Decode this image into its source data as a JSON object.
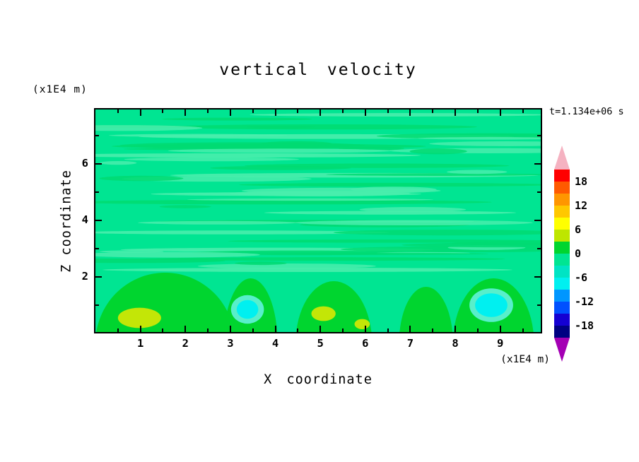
{
  "chart_data": {
    "type": "heatmap",
    "title": "vertical velocity",
    "annotation": "t=1.134e+06 s",
    "xlabel": "X coordinate",
    "ylabel": "Z coordinate",
    "x_unit_label": "(x1E4 m)",
    "y_unit_label": "(x1E4 m)",
    "x_ticks": [
      1,
      2,
      3,
      4,
      5,
      6,
      7,
      8,
      9
    ],
    "x_minor_ticks": [
      0.5,
      1.5,
      2.5,
      3.5,
      4.5,
      5.5,
      6.5,
      7.5,
      8.5,
      9.5
    ],
    "y_ticks": [
      2,
      4,
      6
    ],
    "y_minor_ticks": [
      1,
      3,
      5,
      7
    ],
    "xlim": [
      0,
      9.9
    ],
    "ylim": [
      0.05,
      7.925
    ],
    "grid": false,
    "colorbar": {
      "position": "right",
      "tick_labels": [
        "18",
        "12",
        "6",
        "0",
        "-6",
        "-12",
        "-18"
      ],
      "contour_levels": [
        -21,
        -18,
        -15,
        -12,
        -9,
        -6,
        -3,
        0,
        3,
        6,
        9,
        12,
        15,
        18,
        21
      ],
      "segment_colors_top_to_bottom": [
        "#FF0000",
        "#FF5A00",
        "#FF9600",
        "#FFC800",
        "#FFFF00",
        "#BEE600",
        "#00D52F",
        "#00E592",
        "#00E4C4",
        "#00F0F0",
        "#0096FF",
        "#0050FF",
        "#1400D2",
        "#000082"
      ],
      "over_arrow_color": "#F5B2C1",
      "under_arrow_color": "#A400B4"
    },
    "field": {
      "description": "Filled contour field of vertical velocity; mostly near-zero (medium spring green) with thin horizontal wave streaks above z=2 and convective mounds with updraft/downdraft cores below z=2.",
      "background_value_range": [
        -3,
        0
      ],
      "background_color": "#00E592",
      "streaks": {
        "z_range": [
          2.2,
          7.9
        ],
        "value_ranges": [
          [
            -6,
            -3
          ],
          [
            0,
            3
          ]
        ],
        "colors": [
          "#49EDAD",
          "#00DB72"
        ]
      },
      "mound_color": "#00D52F",
      "mounds": [
        {
          "x_center": 1.55,
          "half_width": 1.55,
          "top_z": 2.1,
          "value_range": [
            0,
            3
          ]
        },
        {
          "x_center": 3.45,
          "half_width": 0.6,
          "top_z": 1.9,
          "value_range": [
            0,
            3
          ]
        },
        {
          "x_center": 5.3,
          "half_width": 0.85,
          "top_z": 1.8,
          "value_range": [
            0,
            3
          ]
        },
        {
          "x_center": 7.35,
          "half_width": 0.6,
          "top_z": 1.6,
          "value_range": [
            0,
            3
          ]
        },
        {
          "x_center": 8.85,
          "half_width": 0.9,
          "top_z": 1.9,
          "value_range": [
            0,
            3
          ]
        }
      ],
      "updraft_cores": [
        {
          "x": 0.98,
          "z": 0.55,
          "rx": 0.48,
          "rz": 0.36,
          "value_range": [
            3,
            6
          ],
          "color": "#C3E607"
        },
        {
          "x": 5.07,
          "z": 0.7,
          "rx": 0.27,
          "rz": 0.26,
          "value_range": [
            3,
            6
          ],
          "color": "#C3E607"
        },
        {
          "x": 5.93,
          "z": 0.33,
          "rx": 0.17,
          "rz": 0.18,
          "value_range": [
            3,
            6
          ],
          "color": "#C3E607"
        }
      ],
      "downdraft_cores": [
        {
          "x": 3.38,
          "z": 0.85,
          "rx": 0.24,
          "rz": 0.33,
          "value_range": [
            -9,
            -3
          ],
          "halo_color": "#58EFCB",
          "core_color": "#00F0F0"
        },
        {
          "x": 8.8,
          "z": 1.0,
          "rx": 0.36,
          "rz": 0.42,
          "value_range": [
            -9,
            -3
          ],
          "halo_color": "#58EFCB",
          "core_color": "#00F0F0"
        }
      ]
    }
  }
}
